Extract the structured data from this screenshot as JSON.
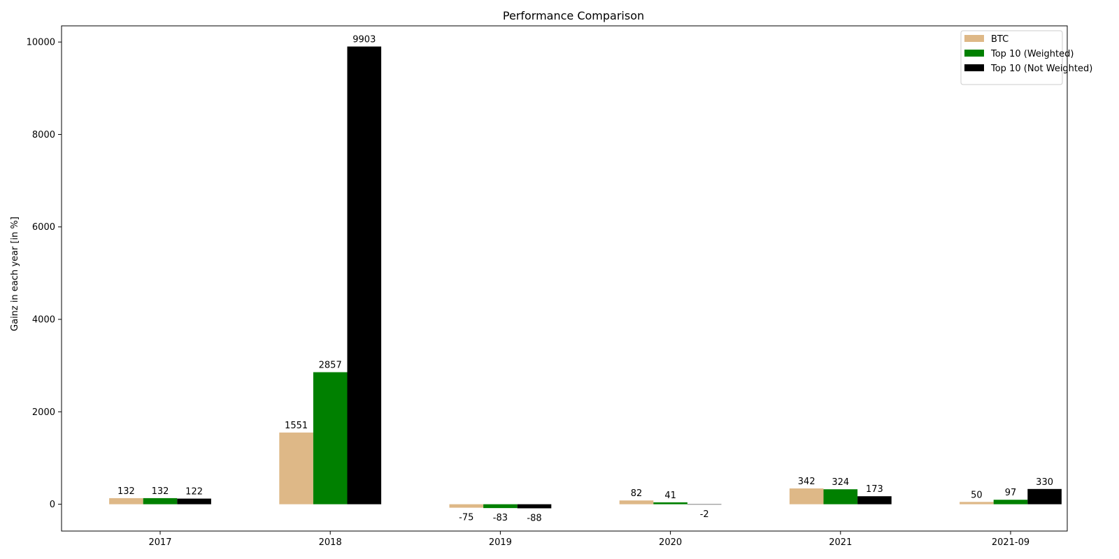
{
  "chart_data": {
    "type": "bar",
    "title": "Performance Comparison",
    "xlabel": "",
    "ylabel": "Gainz in each year [in %]",
    "categories": [
      "2017",
      "2018",
      "2019",
      "2020",
      "2021",
      "2021-09"
    ],
    "series": [
      {
        "name": "BTC",
        "color": "#deb887",
        "values": [
          132,
          1551,
          -75,
          82,
          342,
          50
        ]
      },
      {
        "name": "Top 10 (Weighted)",
        "color": "#008000",
        "values": [
          132,
          2857,
          -83,
          41,
          324,
          97
        ]
      },
      {
        "name": "Top 10 (Not Weighted)",
        "color": "#000000",
        "values": [
          122,
          9903,
          -88,
          -2,
          173,
          330
        ]
      }
    ],
    "ylim": [
      -580,
      10350
    ],
    "yticks": [
      0,
      2000,
      4000,
      6000,
      8000,
      10000
    ],
    "grid": false,
    "legend": "top-right"
  }
}
